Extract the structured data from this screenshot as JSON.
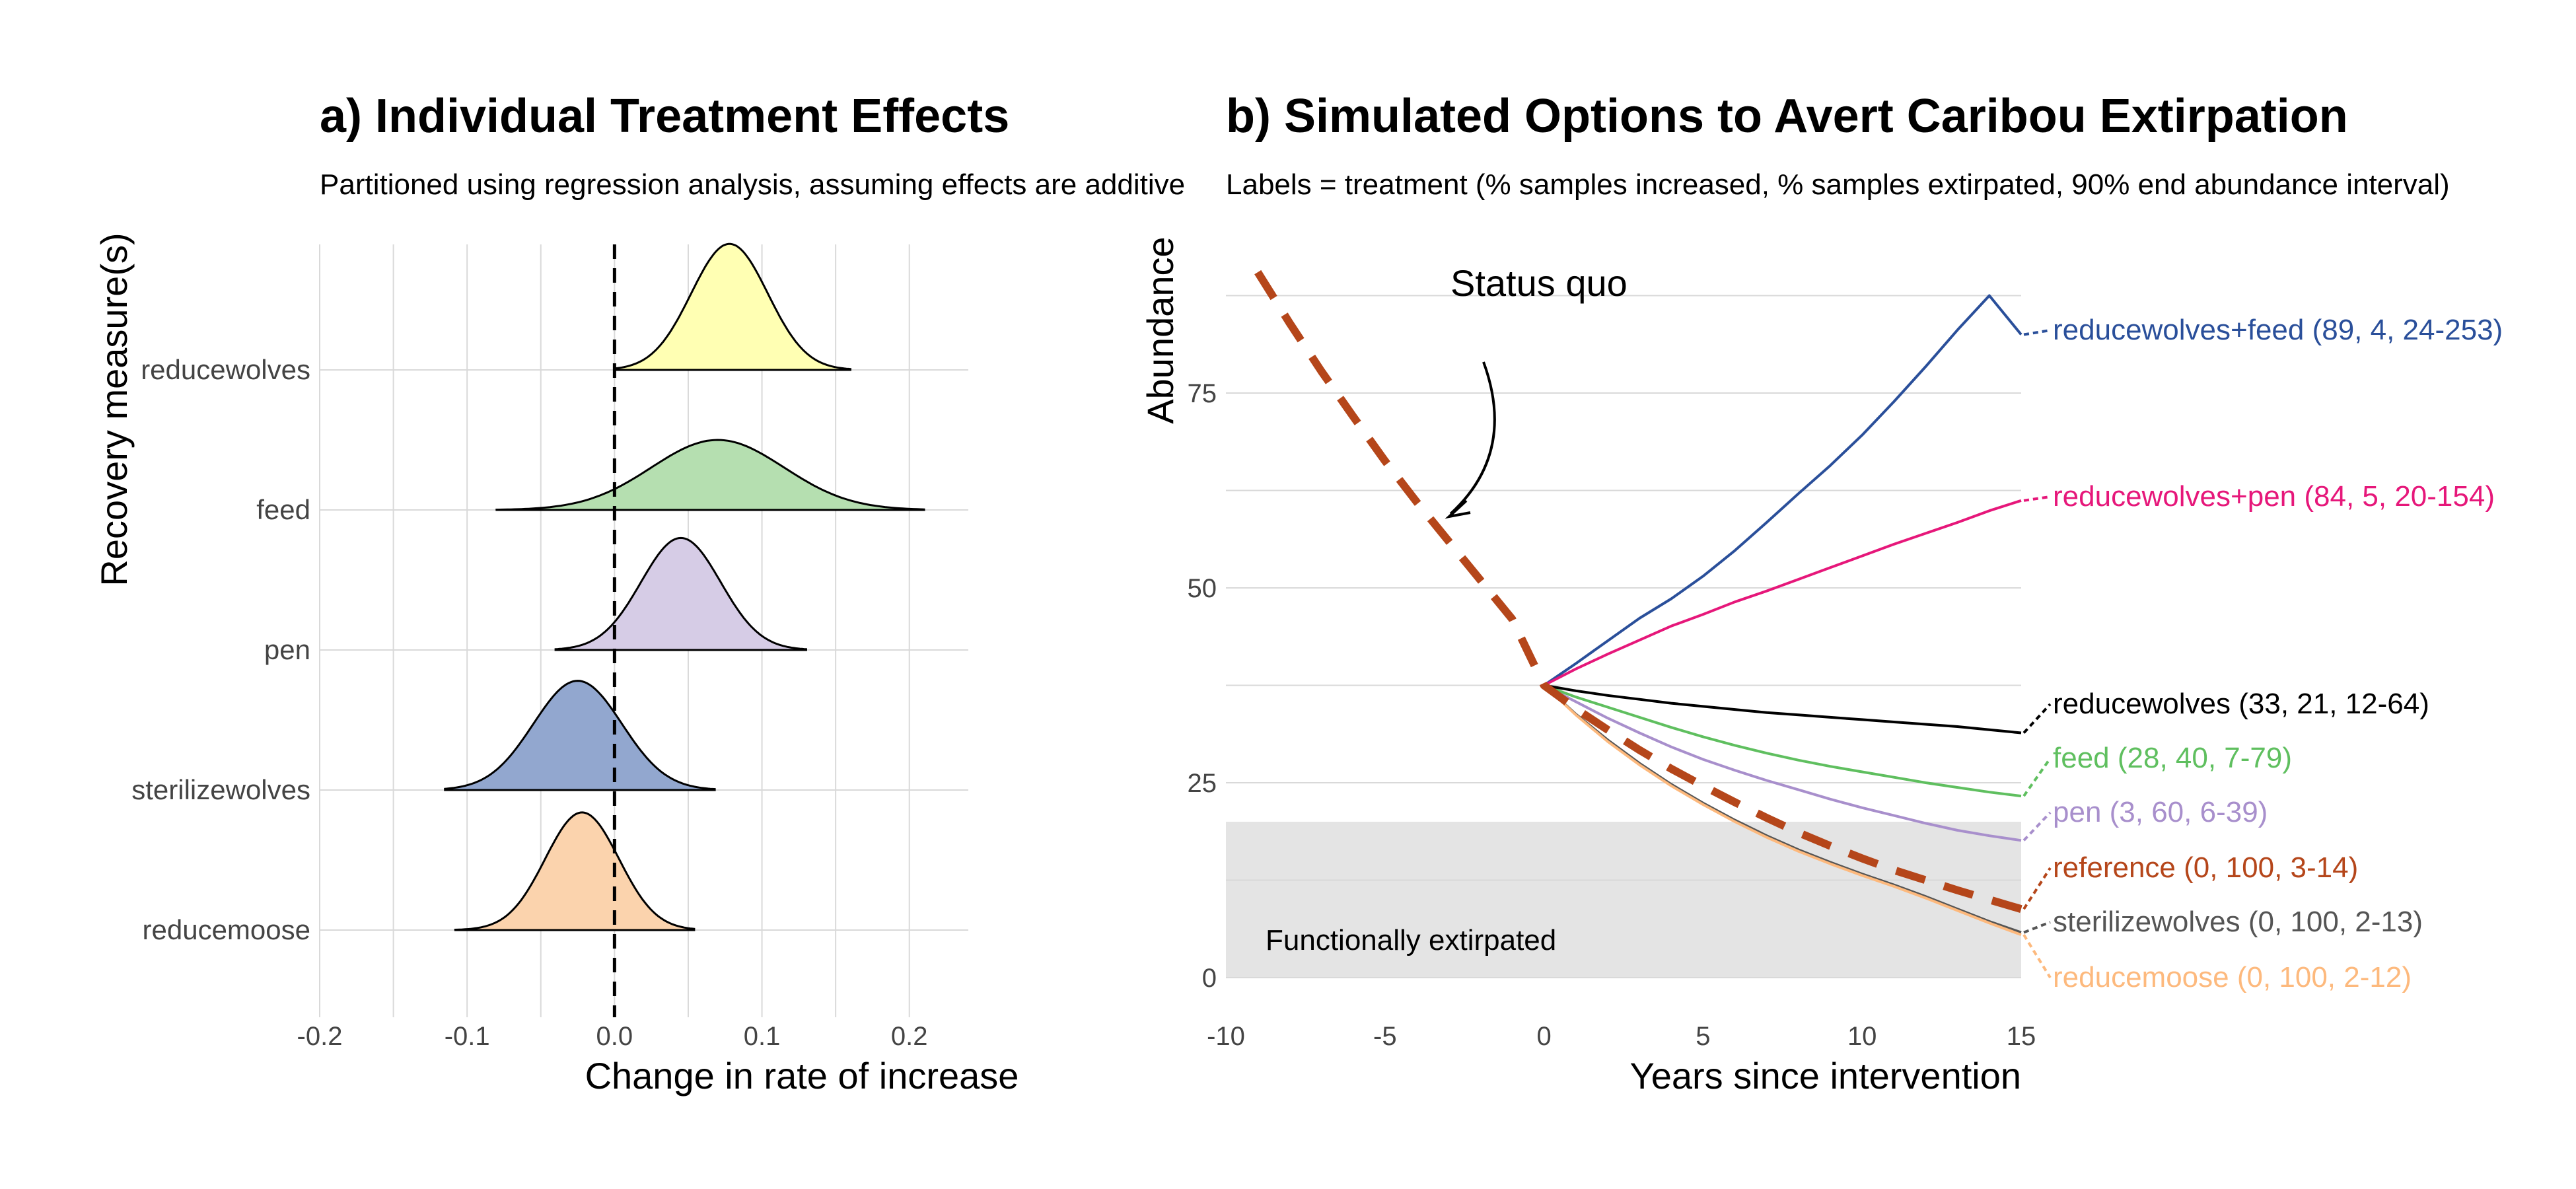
{
  "chart_data": [
    {
      "type": "ridgeline",
      "title": "a) Individual Treatment Effects",
      "subtitle": "Partitioned using regression analysis, assuming effects are additive",
      "xlabel": "Change in rate of increase",
      "ylabel": "Recovery measure(s)",
      "xlim": [
        -0.2,
        0.24
      ],
      "xticks": [
        -0.2,
        -0.1,
        0.0,
        0.1,
        0.2
      ],
      "xtick_labels": [
        "-0.2",
        "-0.1",
        "0.0",
        "0.1",
        "0.2"
      ],
      "reference_line_x": 0.0,
      "grid": true,
      "series": [
        {
          "name": "reducewolves",
          "color": "#ffffb3",
          "mean": 0.078,
          "sd": 0.026,
          "min": 0.0,
          "max": 0.16,
          "peak_height": 0.9
        },
        {
          "name": "feed",
          "color": "#b5dfb0",
          "mean": 0.07,
          "sd": 0.045,
          "min": -0.08,
          "max": 0.21,
          "peak_height": 0.5
        },
        {
          "name": "pen",
          "color": "#d6cce6",
          "mean": 0.045,
          "sd": 0.027,
          "min": -0.04,
          "max": 0.13,
          "peak_height": 0.8
        },
        {
          "name": "sterilizewolves",
          "color": "#92a7cf",
          "mean": -0.025,
          "sd": 0.03,
          "min": -0.115,
          "max": 0.068,
          "peak_height": 0.78
        },
        {
          "name": "reducemoose",
          "color": "#fbd3ad",
          "mean": -0.022,
          "sd": 0.025,
          "min": -0.108,
          "max": 0.054,
          "peak_height": 0.84
        }
      ]
    },
    {
      "type": "line",
      "title": "b) Simulated Options to Avert Caribou Extirpation",
      "subtitle": "Labels = treatment (% samples increased, % samples extirpated, 90% end abundance interval)",
      "xlabel": "Years since intervention",
      "ylabel": "Abundance",
      "xlim": [
        -10,
        15
      ],
      "ylim": [
        0,
        90
      ],
      "xticks": [
        -10,
        -5,
        0,
        5,
        10,
        15
      ],
      "yticks": [
        0,
        25,
        50,
        75
      ],
      "grid": true,
      "shaded_region": {
        "y": [
          0,
          20
        ],
        "label": "Functionally extirpated"
      },
      "annotation": "Status quo",
      "series": [
        {
          "name": "reducewolves+feed",
          "label": "reducewolves+feed (89, 4, 24-253)",
          "color": "#2a4f9a",
          "x": [
            0,
            1,
            2,
            3,
            4,
            5,
            6,
            7,
            8,
            9,
            10,
            11,
            12,
            13,
            14,
            15
          ],
          "y": [
            37.5,
            40.3,
            43.2,
            46.1,
            48.6,
            51.5,
            54.8,
            58.4,
            62.1,
            65.7,
            69.6,
            73.9,
            78.4,
            83.1,
            87.5,
            82.5
          ]
        },
        {
          "name": "reducewolves+pen",
          "label": "reducewolves+pen (84, 5, 20-154)",
          "color": "#e6177a",
          "x": [
            0,
            1,
            2,
            3,
            4,
            5,
            6,
            7,
            8,
            9,
            10,
            11,
            12,
            13,
            14,
            15
          ],
          "y": [
            37.5,
            39.6,
            41.5,
            43.3,
            45.1,
            46.6,
            48.2,
            49.6,
            51.1,
            52.6,
            54.1,
            55.6,
            57.0,
            58.4,
            59.9,
            61.2
          ]
        },
        {
          "name": "reducewolves",
          "label": "reducewolves (33, 21, 12-64)",
          "color": "#000000",
          "x": [
            0,
            1,
            2,
            3,
            4,
            5,
            6,
            7,
            8,
            9,
            10,
            11,
            12,
            13,
            14,
            15
          ],
          "y": [
            37.5,
            36.8,
            36.2,
            35.7,
            35.2,
            34.8,
            34.4,
            34.0,
            33.7,
            33.4,
            33.1,
            32.8,
            32.5,
            32.2,
            31.8,
            31.4
          ]
        },
        {
          "name": "feed",
          "label": "feed (28, 40, 7-79)",
          "color": "#5fbf5f",
          "x": [
            0,
            1,
            2,
            3,
            4,
            5,
            6,
            7,
            8,
            9,
            10,
            11,
            12,
            13,
            14,
            15
          ],
          "y": [
            37.5,
            36.0,
            34.7,
            33.4,
            32.1,
            30.9,
            29.8,
            28.8,
            27.9,
            27.1,
            26.4,
            25.7,
            25.0,
            24.4,
            23.8,
            23.3
          ]
        },
        {
          "name": "pen",
          "label": "pen (3, 60, 6-39)",
          "color": "#a88fcc",
          "x": [
            0,
            1,
            2,
            3,
            4,
            5,
            6,
            7,
            8,
            9,
            10,
            11,
            12,
            13,
            14,
            15
          ],
          "y": [
            37.5,
            35.4,
            33.3,
            31.4,
            29.6,
            28.0,
            26.6,
            25.3,
            24.1,
            22.9,
            21.8,
            20.8,
            19.8,
            18.9,
            18.2,
            17.6
          ]
        },
        {
          "name": "reference",
          "label": "reference (0, 100, 3-14)",
          "color": "#b5461a",
          "dashed": true,
          "x": [
            -9,
            -8,
            -7,
            -6,
            -5,
            -4,
            -3,
            -2,
            -1,
            0,
            1,
            2,
            3,
            4,
            5,
            6,
            7,
            8,
            9,
            10,
            11,
            12,
            13,
            14,
            15
          ],
          "y": [
            90.5,
            84.0,
            77.8,
            72.0,
            66.3,
            61.0,
            56.0,
            51.0,
            46.0,
            37.5,
            34.5,
            31.8,
            29.2,
            26.8,
            24.6,
            22.5,
            20.5,
            18.6,
            16.9,
            15.3,
            13.8,
            12.5,
            11.2,
            10.0,
            8.8
          ]
        },
        {
          "name": "sterilizewolves",
          "label": "sterilizewolves (0, 100, 2-13)",
          "color": "#555555",
          "x": [
            0,
            1,
            2,
            3,
            4,
            5,
            6,
            7,
            8,
            9,
            10,
            11,
            12,
            13,
            14,
            15
          ],
          "y": [
            37.5,
            33.8,
            30.5,
            27.5,
            24.8,
            22.4,
            20.2,
            18.2,
            16.4,
            14.8,
            13.3,
            11.9,
            10.4,
            8.8,
            7.2,
            5.8
          ]
        },
        {
          "name": "reducemoose",
          "label": "reducemoose (0, 100, 2-12)",
          "color": "#fdb97d",
          "x": [
            0,
            1,
            2,
            3,
            4,
            5,
            6,
            7,
            8,
            9,
            10,
            11,
            12,
            13,
            14,
            15
          ],
          "y": [
            37.5,
            33.7,
            30.3,
            27.3,
            24.6,
            22.2,
            20.0,
            18.0,
            16.2,
            14.6,
            13.1,
            11.7,
            10.2,
            8.6,
            7.0,
            5.5
          ]
        }
      ]
    }
  ]
}
